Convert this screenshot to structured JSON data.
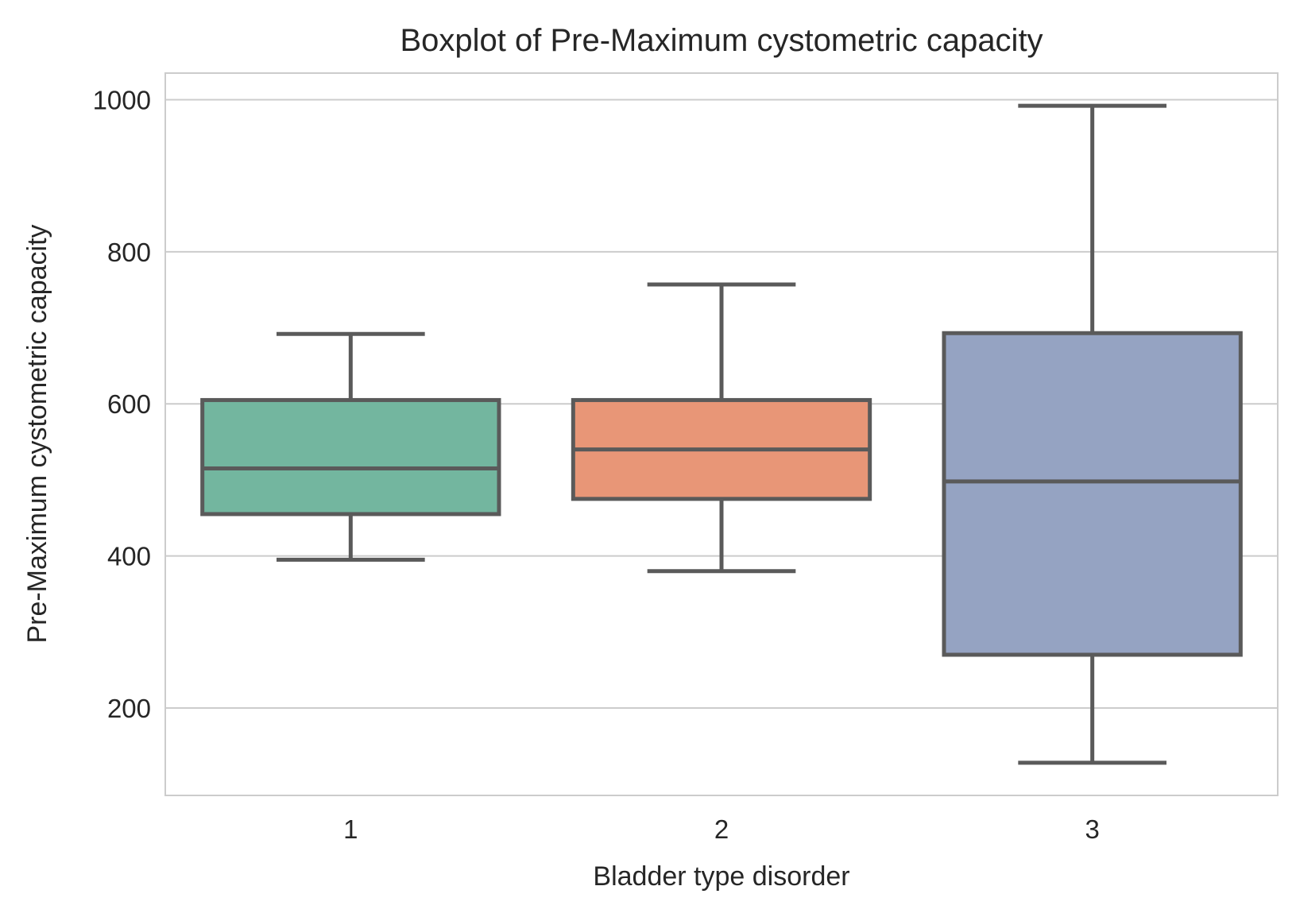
{
  "chart_data": {
    "type": "boxplot",
    "title": "Boxplot of Pre-Maximum cystometric capacity",
    "xlabel": "Bladder type disorder",
    "ylabel": "Pre-Maximum cystometric capacity",
    "categories": [
      "1",
      "2",
      "3"
    ],
    "ylim": [
      85,
      1035
    ],
    "yticks": [
      200,
      400,
      600,
      800,
      1000
    ],
    "grid": true,
    "boxes": [
      {
        "category": "1",
        "whisker_low": 395,
        "q1": 455,
        "median": 515,
        "q3": 605,
        "whisker_high": 692,
        "color": "#73b69f"
      },
      {
        "category": "2",
        "whisker_low": 380,
        "q1": 475,
        "median": 540,
        "q3": 605,
        "whisker_high": 757,
        "color": "#e89677"
      },
      {
        "category": "3",
        "whisker_low": 128,
        "q1": 270,
        "median": 498,
        "q3": 693,
        "whisker_high": 992,
        "color": "#95a3c2"
      }
    ],
    "line_color": "#5a5a5a",
    "grid_color": "#cccccc"
  }
}
